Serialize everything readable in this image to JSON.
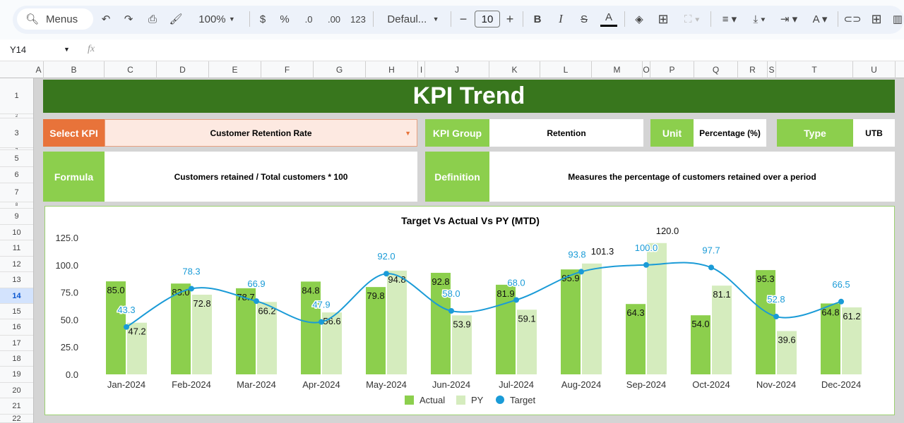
{
  "toolbar": {
    "menus": "Menus",
    "zoom": "100%",
    "currency": "$",
    "percent": "%",
    "dec_decrease": ".0",
    "dec_increase": ".00",
    "number_format": "123",
    "font": "Defaul...",
    "font_size": "10",
    "bold": "B",
    "italic": "I",
    "text_color": "A"
  },
  "formula_bar": {
    "cell_ref": "Y14",
    "fx": "fx"
  },
  "columns": [
    "A",
    "B",
    "C",
    "D",
    "E",
    "F",
    "G",
    "H",
    "I",
    "J",
    "K",
    "L",
    "M",
    "O",
    "P",
    "Q",
    "R",
    "S",
    "T",
    "U"
  ],
  "rows": [
    "1",
    "2",
    "3",
    "4",
    "5",
    "6",
    "7",
    "8",
    "9",
    "10",
    "11",
    "12",
    "13",
    "14",
    "15",
    "16",
    "17",
    "18",
    "19",
    "20",
    "21",
    "22"
  ],
  "selected_row": "14",
  "dashboard": {
    "title": "KPI Trend",
    "select_kpi_label": "Select KPI",
    "select_kpi_value": "Customer Retention Rate",
    "kpi_group_label": "KPI Group",
    "kpi_group_value": "Retention",
    "unit_label": "Unit",
    "unit_value": "Percentage (%)",
    "type_label": "Type",
    "type_value": "UTB",
    "formula_label": "Formula",
    "formula_value": "Customers retained / Total customers * 100",
    "definition_label": "Definition",
    "definition_value": "Measures the percentage of customers retained over a period"
  },
  "colors": {
    "title_bg": "#38761d",
    "label_green": "#8ccf4d",
    "select_orange": "#e8733a",
    "actual": "#8ccf4d",
    "py": "#d5ecbe",
    "target": "#1a9bd7"
  },
  "chart_data": {
    "type": "bar",
    "title": "Target Vs Actual Vs PY (MTD)",
    "categories": [
      "Jan-2024",
      "Feb-2024",
      "Mar-2024",
      "Apr-2024",
      "May-2024",
      "Jun-2024",
      "Jul-2024",
      "Aug-2024",
      "Sep-2024",
      "Oct-2024",
      "Nov-2024",
      "Dec-2024"
    ],
    "series": [
      {
        "name": "Actual",
        "type": "bar",
        "values": [
          85.0,
          83.0,
          78.7,
          84.8,
          79.8,
          92.8,
          81.9,
          95.9,
          64.3,
          54.0,
          95.3,
          64.8
        ]
      },
      {
        "name": "PY",
        "type": "bar",
        "values": [
          47.2,
          72.8,
          66.2,
          56.6,
          94.8,
          53.9,
          59.1,
          101.3,
          120.0,
          81.1,
          39.6,
          61.2
        ]
      },
      {
        "name": "Target",
        "type": "line",
        "values": [
          43.3,
          78.3,
          66.9,
          47.9,
          92.0,
          58.0,
          68.0,
          93.8,
          100.0,
          97.7,
          52.8,
          66.5
        ]
      }
    ],
    "yticks": [
      "0.0",
      "25.0",
      "50.0",
      "75.0",
      "100.0",
      "125.0"
    ],
    "ylim": [
      0,
      125
    ],
    "legend": "bottom",
    "grid": false
  }
}
